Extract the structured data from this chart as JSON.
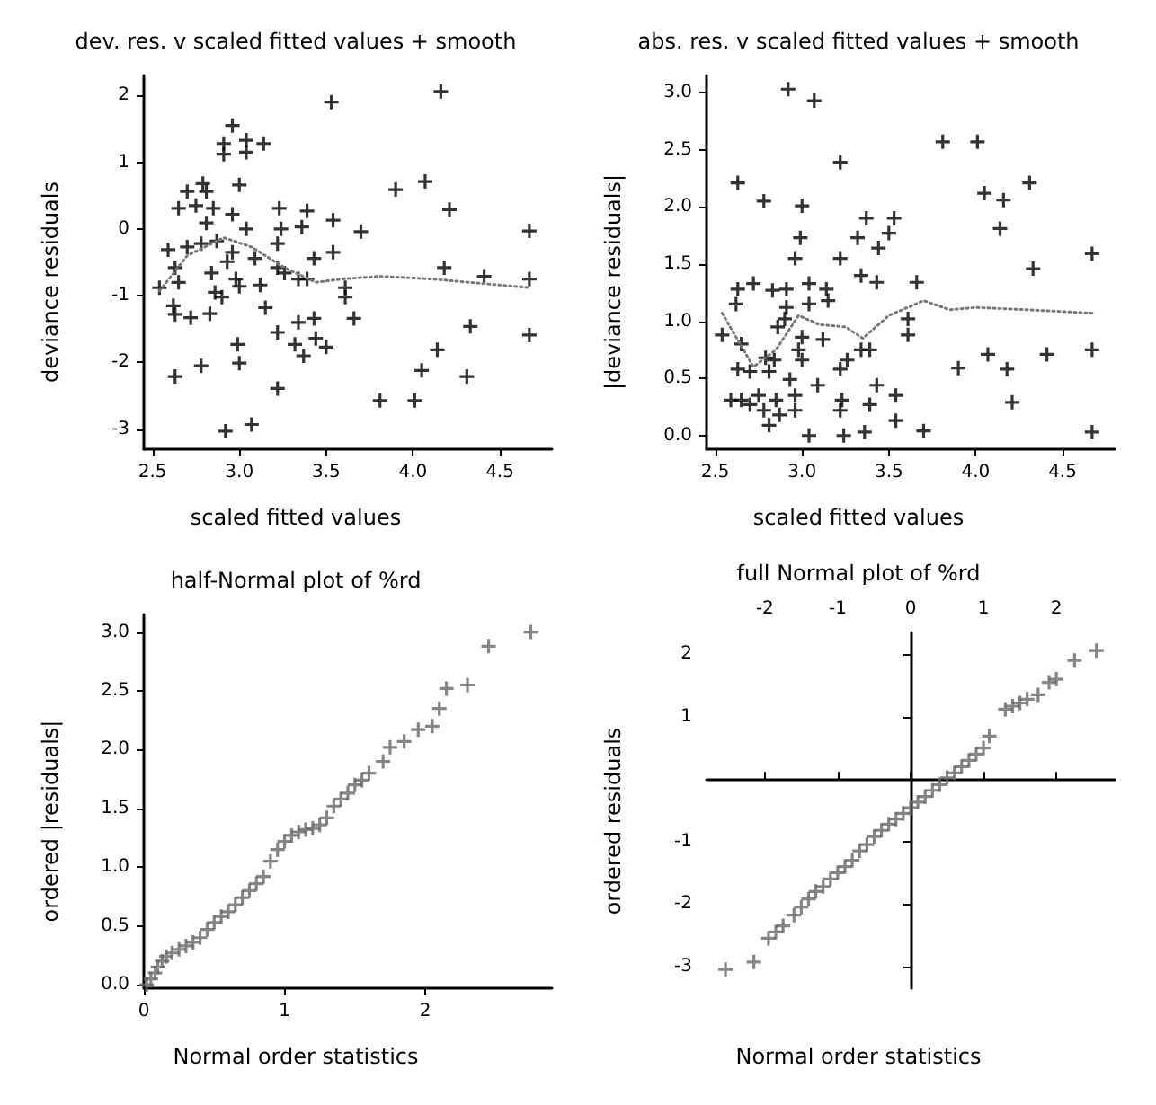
{
  "chart_data": [
    {
      "type": "scatter",
      "title": "dev. res. v scaled fitted values + smooth",
      "xlabel": "scaled fitted values",
      "ylabel": "deviance residuals",
      "marker": "cross",
      "xlim": [
        2.45,
        4.8
      ],
      "ylim": [
        -3.3,
        2.3
      ],
      "xticks": [
        {
          "value": 2.5,
          "label": "2.5"
        },
        {
          "value": 3,
          "label": "3.0"
        },
        {
          "value": 3.5,
          "label": "3.5"
        },
        {
          "value": 4,
          "label": "4.0"
        },
        {
          "value": 4.5,
          "label": "4.5"
        }
      ],
      "yticks": [
        -3,
        -2,
        -1,
        0,
        1,
        2
      ],
      "series": [
        {
          "color": "#000000",
          "x": [
            3.53,
            4.16,
            2.96,
            2.91,
            2.91,
            3.04,
            3.04,
            3.14,
            2.79,
            3.0,
            2.7,
            2.81,
            2.65,
            2.75,
            2.85,
            2.96,
            3.23,
            3.39,
            3.9,
            4.07,
            4.21,
            3.54,
            3.7,
            4.67,
            3.24,
            3.36,
            3.04,
            2.81,
            2.59,
            2.7,
            2.78,
            2.87,
            2.96,
            3.22,
            3.54,
            3.09,
            3.43,
            3.22,
            2.93,
            2.63,
            2.84,
            2.98,
            3.26,
            3.39,
            3.34,
            4.18,
            4.41,
            4.67,
            2.54,
            2.65,
            3.0,
            3.12,
            2.86,
            2.9,
            3.61,
            3.61,
            2.62,
            2.63,
            2.72,
            2.83,
            3.15,
            3.22,
            3.34,
            3.43,
            3.44,
            3.66,
            4.33,
            4.67,
            2.99,
            3.32,
            3.37,
            3.5,
            4.14,
            2.78,
            3.0,
            2.63,
            4.05,
            4.31,
            3.22,
            3.81,
            4.01,
            2.92,
            3.07
          ],
          "values": [
            1.9,
            2.06,
            1.55,
            1.28,
            1.12,
            1.33,
            1.15,
            1.28,
            0.68,
            0.66,
            0.56,
            0.56,
            0.31,
            0.35,
            0.31,
            0.22,
            0.31,
            0.27,
            0.59,
            0.71,
            0.29,
            0.13,
            -0.04,
            -0.03,
            0.0,
            0.03,
            0.0,
            0.09,
            -0.31,
            -0.27,
            -0.22,
            -0.18,
            -0.35,
            -0.22,
            -0.35,
            -0.44,
            -0.44,
            -0.58,
            -0.49,
            -0.58,
            -0.66,
            -0.75,
            -0.66,
            -0.75,
            -0.75,
            -0.58,
            -0.71,
            -0.75,
            -0.88,
            -0.8,
            -0.86,
            -0.84,
            -0.95,
            -1.02,
            -0.88,
            -1.02,
            -1.15,
            -1.28,
            -1.33,
            -1.27,
            -1.18,
            -1.55,
            -1.4,
            -1.34,
            -1.64,
            -1.34,
            -1.46,
            -1.59,
            -1.73,
            -1.73,
            -1.9,
            -1.77,
            -1.81,
            -2.05,
            -2.01,
            -2.21,
            -2.12,
            -2.21,
            -2.39,
            -2.57,
            -2.57,
            -3.03,
            -2.93
          ]
        },
        {
          "type": "line",
          "color": "#777777",
          "marker": "none",
          "line_style": "dotted",
          "x": [
            2.54,
            2.7,
            2.91,
            3.07,
            3.26,
            3.44,
            3.59,
            3.81,
            4.11,
            4.67
          ],
          "values": [
            -0.93,
            -0.4,
            -0.13,
            -0.27,
            -0.58,
            -0.8,
            -0.75,
            -0.71,
            -0.75,
            -0.88
          ]
        }
      ]
    },
    {
      "type": "scatter",
      "title": "abs. res. v scaled fitted values + smooth",
      "xlabel": "scaled fitted values",
      "ylabel": "|deviance residuals|",
      "marker": "cross",
      "xlim": [
        2.45,
        4.8
      ],
      "ylim": [
        -0.12,
        3.15
      ],
      "xticks": [
        {
          "value": 2.5,
          "label": "2.5"
        },
        {
          "value": 3,
          "label": "3.0"
        },
        {
          "value": 3.5,
          "label": "3.5"
        },
        {
          "value": 4,
          "label": "4.0"
        },
        {
          "value": 4.5,
          "label": "4.5"
        }
      ],
      "yticks": [
        {
          "value": 0,
          "label": "0.0"
        },
        {
          "value": 0.5,
          "label": "0.5"
        },
        {
          "value": 1,
          "label": "1.0"
        },
        {
          "value": 1.5,
          "label": "1.5"
        },
        {
          "value": 2,
          "label": "2.0"
        },
        {
          "value": 2.5,
          "label": "2.5"
        },
        {
          "value": 3,
          "label": "3.0"
        }
      ],
      "series": [
        {
          "color": "#000000",
          "x": [
            3.53,
            4.16,
            2.96,
            2.91,
            2.91,
            3.04,
            3.04,
            3.14,
            2.79,
            3.0,
            2.7,
            2.81,
            2.65,
            2.75,
            2.85,
            2.96,
            3.23,
            3.39,
            3.9,
            4.07,
            4.21,
            3.54,
            3.7,
            4.67,
            3.24,
            3.36,
            3.04,
            2.81,
            2.59,
            2.7,
            2.78,
            2.87,
            2.96,
            3.22,
            3.54,
            3.09,
            3.43,
            3.22,
            2.93,
            2.63,
            2.84,
            2.98,
            3.26,
            3.39,
            3.34,
            4.18,
            4.41,
            4.67,
            2.54,
            2.65,
            3.0,
            3.12,
            2.86,
            2.9,
            3.61,
            3.61,
            2.62,
            2.63,
            2.72,
            2.83,
            3.15,
            3.22,
            3.34,
            3.43,
            3.44,
            3.66,
            4.33,
            4.67,
            2.99,
            3.32,
            3.37,
            3.5,
            4.14,
            2.78,
            3.0,
            2.63,
            4.05,
            4.31,
            3.22,
            3.81,
            4.01,
            2.92,
            3.07
          ],
          "values": [
            1.9,
            2.06,
            1.55,
            1.28,
            1.12,
            1.33,
            1.15,
            1.28,
            0.68,
            0.66,
            0.56,
            0.56,
            0.31,
            0.35,
            0.31,
            0.22,
            0.31,
            0.27,
            0.59,
            0.71,
            0.29,
            0.13,
            0.04,
            0.03,
            0.0,
            0.03,
            0.0,
            0.09,
            0.31,
            0.27,
            0.22,
            0.18,
            0.35,
            0.22,
            0.35,
            0.44,
            0.44,
            0.58,
            0.49,
            0.58,
            0.66,
            0.75,
            0.66,
            0.75,
            0.75,
            0.58,
            0.71,
            0.75,
            0.88,
            0.8,
            0.86,
            0.84,
            0.95,
            1.02,
            0.88,
            1.02,
            1.15,
            1.28,
            1.33,
            1.27,
            1.18,
            1.55,
            1.4,
            1.34,
            1.64,
            1.34,
            1.46,
            1.59,
            1.73,
            1.73,
            1.9,
            1.77,
            1.81,
            2.05,
            2.01,
            2.21,
            2.12,
            2.21,
            2.39,
            2.57,
            2.57,
            3.03,
            2.93
          ]
        },
        {
          "type": "line",
          "color": "#777777",
          "marker": "none",
          "line_style": "dotted",
          "x": [
            2.54,
            2.72,
            2.85,
            2.98,
            3.1,
            3.25,
            3.35,
            3.5,
            3.7,
            3.85,
            4.0,
            4.3,
            4.67
          ],
          "values": [
            1.07,
            0.6,
            0.75,
            1.05,
            0.97,
            0.95,
            0.85,
            1.05,
            1.18,
            1.1,
            1.12,
            1.1,
            1.07
          ]
        }
      ]
    },
    {
      "type": "scatter",
      "title": "half-Normal plot of %rd",
      "xlabel": "Normal order statistics",
      "ylabel": "ordered |residuals|",
      "marker": "cross",
      "xlim": [
        0,
        2.9
      ],
      "ylim": [
        -0.03,
        3.15
      ],
      "xticks": [
        0,
        1,
        2
      ],
      "yticks": [
        {
          "value": 0,
          "label": "0.0"
        },
        {
          "value": 0.5,
          "label": "0.5"
        },
        {
          "value": 1,
          "label": "1.0"
        },
        {
          "value": 1.5,
          "label": "1.5"
        },
        {
          "value": 2,
          "label": "2.0"
        },
        {
          "value": 2.5,
          "label": "2.5"
        },
        {
          "value": 3,
          "label": "3.0"
        }
      ],
      "series": [
        {
          "color": "#666666",
          "x": [
            0.02,
            0.05,
            0.08,
            0.1,
            0.13,
            0.16,
            0.2,
            0.25,
            0.3,
            0.35,
            0.4,
            0.45,
            0.5,
            0.55,
            0.6,
            0.65,
            0.7,
            0.75,
            0.8,
            0.85,
            0.9,
            0.95,
            1.0,
            1.05,
            1.1,
            1.15,
            1.2,
            1.25,
            1.3,
            1.35,
            1.4,
            1.45,
            1.5,
            1.55,
            1.6,
            1.7,
            1.75,
            1.85,
            1.95,
            2.05,
            2.1,
            2.15,
            2.3,
            2.45,
            2.75
          ],
          "values": [
            0.0,
            0.05,
            0.1,
            0.15,
            0.2,
            0.24,
            0.27,
            0.3,
            0.33,
            0.36,
            0.4,
            0.47,
            0.53,
            0.58,
            0.62,
            0.68,
            0.74,
            0.8,
            0.86,
            0.92,
            1.05,
            1.15,
            1.22,
            1.27,
            1.3,
            1.32,
            1.33,
            1.36,
            1.42,
            1.52,
            1.58,
            1.63,
            1.7,
            1.74,
            1.8,
            1.9,
            2.02,
            2.07,
            2.17,
            2.2,
            2.35,
            2.52,
            2.55,
            2.88,
            3.0
          ]
        }
      ]
    },
    {
      "type": "scatter",
      "title": "full Normal plot of %rd",
      "xlabel": "Normal order statistics",
      "ylabel": "ordered residuals",
      "marker": "cross",
      "xlim": [
        -2.8,
        2.8
      ],
      "ylim": [
        -3.35,
        2.35
      ],
      "xticks": [
        -2,
        -1,
        0,
        1,
        2
      ],
      "yticks": [
        -3,
        -2,
        -1,
        1,
        2
      ],
      "series": [
        {
          "color": "#666666",
          "x": [
            -2.54,
            -2.15,
            -1.95,
            -1.85,
            -1.75,
            -1.6,
            -1.5,
            -1.4,
            -1.3,
            -1.2,
            -1.1,
            -1.0,
            -0.9,
            -0.8,
            -0.7,
            -0.6,
            -0.5,
            -0.4,
            -0.3,
            -0.2,
            -0.1,
            0.0,
            0.1,
            0.2,
            0.3,
            0.4,
            0.5,
            0.6,
            0.7,
            0.8,
            0.9,
            1.0,
            1.08,
            1.3,
            1.4,
            1.5,
            1.6,
            1.75,
            1.9,
            2.0,
            2.25,
            2.55
          ],
          "values": [
            -3.05,
            -2.93,
            -2.55,
            -2.45,
            -2.35,
            -2.18,
            -2.05,
            -1.92,
            -1.8,
            -1.72,
            -1.6,
            -1.5,
            -1.4,
            -1.3,
            -1.15,
            -1.05,
            -0.92,
            -0.82,
            -0.72,
            -0.64,
            -0.55,
            -0.46,
            -0.37,
            -0.28,
            -0.18,
            -0.09,
            0.02,
            0.1,
            0.2,
            0.3,
            0.4,
            0.5,
            0.69,
            1.12,
            1.17,
            1.22,
            1.28,
            1.35,
            1.55,
            1.6,
            1.9,
            2.06
          ]
        }
      ]
    }
  ]
}
